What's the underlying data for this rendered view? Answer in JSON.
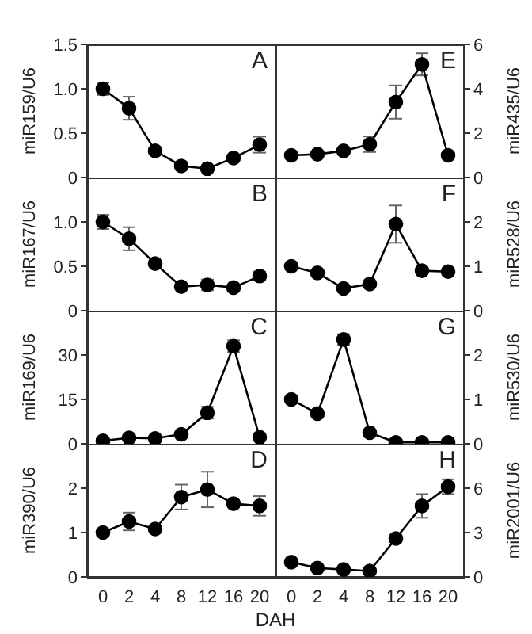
{
  "chart_data": [
    {
      "type": "line",
      "ylabel": "miR159/U6",
      "annotations": [
        "A"
      ],
      "categories": [
        "0",
        "2",
        "4",
        "8",
        "12",
        "16",
        "20"
      ],
      "tick_labels": "y",
      "marker": "circle",
      "ylim": [
        0,
        1.5
      ],
      "yticks": [
        0,
        {
          "value": 0.5,
          "label": "0.5"
        },
        {
          "value": 1,
          "label": "1.0"
        },
        {
          "value": 1.5,
          "label": "1.5"
        }
      ],
      "series": [
        {
          "color": "#000000",
          "values": [
            1.0,
            0.78,
            0.3,
            0.13,
            0.1,
            0.22,
            0.37
          ],
          "errors": [
            0.07,
            0.13,
            0.02,
            0.02,
            0.02,
            0.03,
            0.09
          ]
        }
      ]
    },
    {
      "type": "line",
      "y2label": "miR435/U6",
      "annotations": [
        "E"
      ],
      "categories": [
        "0",
        "2",
        "4",
        "8",
        "12",
        "16",
        "20"
      ],
      "tick_labels": "y",
      "marker": "circle",
      "y2lim": [
        0,
        6
      ],
      "y2ticks": [
        0,
        2,
        4,
        6
      ],
      "series": [
        {
          "color": "#000000",
          "axis": "y2",
          "values": [
            1.0,
            1.05,
            1.2,
            1.5,
            3.4,
            5.1,
            1.0
          ],
          "errors": [
            0.1,
            0.1,
            0.1,
            0.35,
            0.75,
            0.5,
            0.1
          ]
        }
      ]
    },
    {
      "type": "line",
      "ylabel": "miR167/U6",
      "annotations": [
        "B"
      ],
      "categories": [
        "0",
        "2",
        "4",
        "8",
        "12",
        "16",
        "20"
      ],
      "tick_labels": "y",
      "marker": "circle",
      "ylim": [
        0,
        1.5
      ],
      "yticks": [
        0,
        {
          "value": 0.5,
          "label": "0.5"
        },
        {
          "value": 1,
          "label": "1.0"
        }
      ],
      "series": [
        {
          "color": "#000000",
          "values": [
            1.0,
            0.81,
            0.53,
            0.27,
            0.29,
            0.26,
            0.39
          ],
          "errors": [
            0.08,
            0.13,
            0.02,
            0.02,
            0.06,
            0.03,
            0.05
          ]
        }
      ]
    },
    {
      "type": "line",
      "y2label": "miR528/U6",
      "annotations": [
        "F"
      ],
      "categories": [
        "0",
        "2",
        "4",
        "8",
        "12",
        "16",
        "20"
      ],
      "tick_labels": "y",
      "marker": "circle",
      "y2lim": [
        0,
        3
      ],
      "y2ticks": [
        0,
        1,
        2
      ],
      "series": [
        {
          "color": "#000000",
          "axis": "y2",
          "values": [
            1.0,
            0.85,
            0.5,
            0.6,
            1.95,
            0.9,
            0.88
          ],
          "errors": [
            0.05,
            0.08,
            0.05,
            0.05,
            0.42,
            0.08,
            0.08
          ]
        }
      ]
    },
    {
      "type": "line",
      "ylabel": "miR169/U6",
      "annotations": [
        "C"
      ],
      "categories": [
        "0",
        "2",
        "4",
        "8",
        "12",
        "16",
        "20"
      ],
      "tick_labels": "y",
      "marker": "circle",
      "ylim": [
        0,
        45
      ],
      "yticks": [
        0,
        15,
        30
      ],
      "series": [
        {
          "color": "#000000",
          "values": [
            1,
            2,
            1.8,
            3.2,
            10.5,
            33,
            2.2
          ],
          "errors": [
            0.3,
            0.4,
            0.3,
            0.5,
            2,
            2,
            0.4
          ]
        }
      ]
    },
    {
      "type": "line",
      "y2label": "miR530/U6",
      "annotations": [
        "G"
      ],
      "categories": [
        "0",
        "2",
        "4",
        "8",
        "12",
        "16",
        "20"
      ],
      "tick_labels": "y",
      "marker": "circle",
      "y2lim": [
        0,
        3
      ],
      "y2ticks": [
        0,
        1,
        2
      ],
      "series": [
        {
          "color": "#000000",
          "axis": "y2",
          "values": [
            1.0,
            0.68,
            2.35,
            0.25,
            0.03,
            0.03,
            0.03
          ],
          "errors": [
            0.05,
            0.05,
            0.12,
            0.03,
            0.01,
            0.01,
            0.01
          ]
        }
      ]
    },
    {
      "type": "line",
      "ylabel": "miR390/U6",
      "xlabel": "DAH",
      "annotations": [
        "D"
      ],
      "categories": [
        "0",
        "2",
        "4",
        "8",
        "12",
        "16",
        "20"
      ],
      "marker": "circle",
      "ylim": [
        0,
        3
      ],
      "yticks": [
        0,
        1,
        2
      ],
      "series": [
        {
          "color": "#000000",
          "values": [
            1.0,
            1.25,
            1.08,
            1.8,
            1.97,
            1.65,
            1.6
          ],
          "errors": [
            0.08,
            0.2,
            0.05,
            0.28,
            0.4,
            0.08,
            0.22
          ]
        }
      ]
    },
    {
      "type": "line",
      "y2label": "miR2001/U6",
      "annotations": [
        "H"
      ],
      "categories": [
        "0",
        "2",
        "4",
        "8",
        "12",
        "16",
        "20"
      ],
      "marker": "circle",
      "y2lim": [
        0,
        9
      ],
      "y2ticks": [
        0,
        3,
        6
      ],
      "series": [
        {
          "color": "#000000",
          "axis": "y2",
          "values": [
            1.0,
            0.6,
            0.5,
            0.4,
            2.6,
            4.8,
            6.1
          ],
          "errors": [
            0.1,
            0.08,
            0.05,
            0.05,
            0.25,
            0.8,
            0.5
          ]
        }
      ]
    }
  ]
}
